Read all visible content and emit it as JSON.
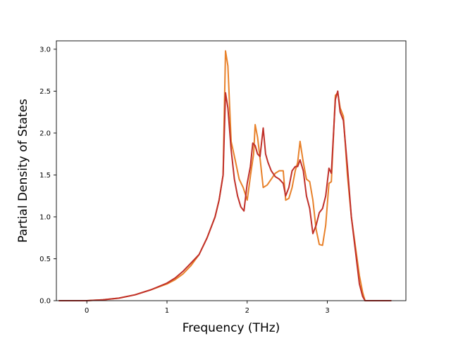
{
  "chart_data": {
    "type": "line",
    "title": "",
    "xlabel": "Frequency (THz)",
    "ylabel": "Partial Density of States",
    "xlim": [
      -0.38,
      3.98
    ],
    "ylim": [
      0.0,
      3.1
    ],
    "xticks": [
      0,
      1,
      2,
      3
    ],
    "xtick_labels": [
      "0",
      "1",
      "2",
      "3"
    ],
    "yticks": [
      0.0,
      0.5,
      1.0,
      1.5,
      2.0,
      2.5,
      3.0
    ],
    "ytick_labels": [
      "0.0",
      "0.5",
      "1.0",
      "1.5",
      "2.0",
      "2.5",
      "3.0"
    ],
    "grid": false,
    "legend": "none",
    "series": [
      {
        "color": "#e8812a",
        "x": [
          -0.35,
          0.0,
          0.2,
          0.4,
          0.6,
          0.8,
          1.0,
          1.1,
          1.2,
          1.3,
          1.4,
          1.5,
          1.6,
          1.65,
          1.7,
          1.73,
          1.76,
          1.8,
          1.85,
          1.9,
          1.95,
          2.0,
          2.05,
          2.08,
          2.1,
          2.13,
          2.16,
          2.2,
          2.25,
          2.3,
          2.35,
          2.4,
          2.45,
          2.48,
          2.52,
          2.56,
          2.6,
          2.63,
          2.66,
          2.7,
          2.74,
          2.78,
          2.82,
          2.86,
          2.9,
          2.94,
          2.98,
          3.02,
          3.05,
          3.1,
          3.13,
          3.16,
          3.2,
          3.25,
          3.3,
          3.35,
          3.4,
          3.44,
          3.47,
          3.55,
          3.6,
          3.8
        ],
        "y": [
          0.0,
          0.0,
          0.01,
          0.03,
          0.07,
          0.13,
          0.2,
          0.25,
          0.32,
          0.42,
          0.55,
          0.75,
          1.0,
          1.2,
          1.5,
          2.98,
          2.8,
          1.9,
          1.68,
          1.45,
          1.35,
          1.2,
          1.55,
          1.75,
          2.1,
          1.95,
          1.7,
          1.35,
          1.38,
          1.45,
          1.52,
          1.55,
          1.55,
          1.2,
          1.22,
          1.35,
          1.55,
          1.65,
          1.9,
          1.65,
          1.45,
          1.42,
          1.2,
          0.85,
          0.67,
          0.66,
          0.9,
          1.4,
          1.42,
          2.45,
          2.48,
          2.3,
          2.2,
          1.5,
          1.0,
          0.65,
          0.3,
          0.1,
          0.0,
          0.0,
          0.0,
          0.0
        ]
      },
      {
        "color": "#c0302a",
        "x": [
          -0.35,
          0.0,
          0.2,
          0.4,
          0.6,
          0.8,
          1.0,
          1.1,
          1.2,
          1.3,
          1.4,
          1.5,
          1.6,
          1.65,
          1.7,
          1.73,
          1.76,
          1.8,
          1.84,
          1.88,
          1.92,
          1.96,
          2.0,
          2.04,
          2.07,
          2.1,
          2.13,
          2.16,
          2.2,
          2.23,
          2.26,
          2.3,
          2.35,
          2.4,
          2.45,
          2.48,
          2.52,
          2.56,
          2.6,
          2.63,
          2.66,
          2.7,
          2.74,
          2.78,
          2.82,
          2.86,
          2.9,
          2.94,
          2.98,
          3.02,
          3.05,
          3.1,
          3.13,
          3.16,
          3.2,
          3.25,
          3.3,
          3.35,
          3.4,
          3.44,
          3.47,
          3.55,
          3.6,
          3.8
        ],
        "y": [
          0.0,
          0.0,
          0.01,
          0.03,
          0.07,
          0.13,
          0.21,
          0.27,
          0.35,
          0.45,
          0.55,
          0.75,
          1.0,
          1.2,
          1.5,
          2.48,
          2.3,
          1.8,
          1.45,
          1.25,
          1.12,
          1.07,
          1.4,
          1.6,
          1.88,
          1.85,
          1.75,
          1.72,
          2.06,
          1.75,
          1.65,
          1.55,
          1.48,
          1.45,
          1.4,
          1.25,
          1.35,
          1.55,
          1.6,
          1.6,
          1.68,
          1.55,
          1.25,
          1.1,
          0.8,
          0.9,
          1.05,
          1.1,
          1.25,
          1.58,
          1.52,
          2.4,
          2.5,
          2.25,
          2.15,
          1.6,
          1.0,
          0.6,
          0.2,
          0.05,
          0.0,
          0.0,
          0.0,
          0.0
        ]
      }
    ]
  }
}
